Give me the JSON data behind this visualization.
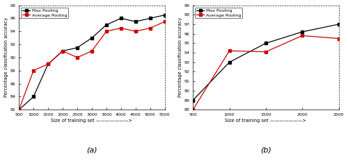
{
  "a_x": [
    500,
    1000,
    1500,
    2000,
    2500,
    3000,
    3500,
    4000,
    4500,
    5000,
    5500
  ],
  "a_max": [
    82.0,
    84.0,
    89.0,
    91.0,
    91.5,
    93.0,
    95.0,
    96.0,
    95.5,
    96.0,
    96.5
  ],
  "a_avg": [
    82.0,
    88.0,
    89.0,
    91.0,
    90.0,
    91.0,
    94.0,
    94.5,
    94.0,
    94.5,
    95.5
  ],
  "b_x": [
    500,
    1000,
    1500,
    2000,
    2500
  ],
  "b_max": [
    89.0,
    93.0,
    95.0,
    96.2,
    97.0
  ],
  "b_avg": [
    88.0,
    94.2,
    94.1,
    95.8,
    95.5
  ],
  "a_xlim": [
    500,
    5500
  ],
  "a_ylim": [
    82,
    98
  ],
  "a_xticks": [
    500,
    1000,
    1500,
    2000,
    2500,
    3000,
    3500,
    4000,
    4500,
    5000,
    5500
  ],
  "a_yticks": [
    82,
    84,
    86,
    88,
    90,
    92,
    94,
    96,
    98
  ],
  "b_xlim": [
    500,
    2500
  ],
  "b_ylim": [
    88,
    99
  ],
  "b_xticks": [
    500,
    1000,
    1500,
    2000,
    2500
  ],
  "b_yticks": [
    88,
    89,
    90,
    91,
    92,
    93,
    94,
    95,
    96,
    97,
    98,
    99
  ],
  "xlabel": "Size of training set ———————>",
  "ylabel": "Percentage classification accuracy",
  "label_max": "Max Pooling",
  "label_avg": "Average Pooling",
  "color_max": "#000000",
  "color_avg": "#cc0000",
  "marker": "s",
  "linewidth": 0.9,
  "markersize": 2.5,
  "title_a": "(a)",
  "title_b": "(b)",
  "tick_fontsize": 4.5,
  "label_fontsize": 4.8,
  "legend_fontsize": 4.5,
  "title_fontsize": 8
}
